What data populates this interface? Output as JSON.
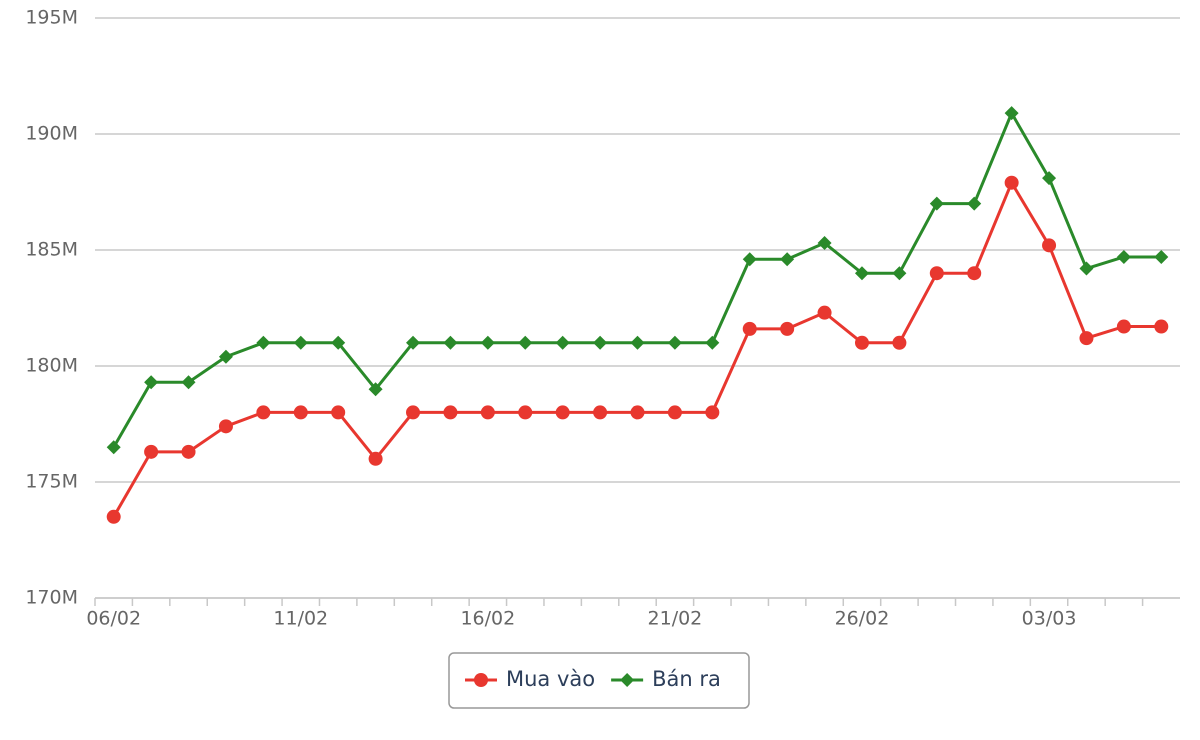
{
  "chart_data": {
    "type": "line",
    "categories": [
      "06/02",
      null,
      null,
      null,
      null,
      "11/02",
      null,
      null,
      null,
      null,
      "16/02",
      null,
      null,
      null,
      null,
      "21/02",
      null,
      null,
      null,
      null,
      "26/02",
      null,
      null,
      null,
      null,
      "03/03",
      null,
      null,
      null
    ],
    "series": [
      {
        "name": "Mua vào",
        "color": "#e8372f",
        "marker": "circle",
        "values": [
          173.5,
          176.3,
          176.3,
          177.4,
          178,
          178,
          178,
          176,
          178,
          178,
          178,
          178,
          178,
          178,
          178,
          178,
          178,
          181.6,
          181.6,
          182.3,
          181,
          181,
          184,
          184,
          187.9,
          185.2,
          181.2,
          181.7,
          181.7
        ]
      },
      {
        "name": "Bán ra",
        "color": "#2a8a2a",
        "marker": "diamond",
        "values": [
          176.5,
          179.3,
          179.3,
          180.4,
          181,
          181,
          181,
          179,
          181,
          181,
          181,
          181,
          181,
          181,
          181,
          181,
          181,
          184.6,
          184.6,
          185.3,
          184,
          184,
          187,
          187,
          190.9,
          188.1,
          184.2,
          184.7,
          184.7
        ]
      }
    ],
    "ylim": [
      170,
      195
    ],
    "yticks": [
      {
        "value": 170,
        "label": "170M"
      },
      {
        "value": 175,
        "label": "175M"
      },
      {
        "value": 180,
        "label": "180M"
      },
      {
        "value": 185,
        "label": "185M"
      },
      {
        "value": 190,
        "label": "190M"
      },
      {
        "value": 195,
        "label": "195M"
      }
    ],
    "grid": true,
    "legend": "bottom"
  }
}
